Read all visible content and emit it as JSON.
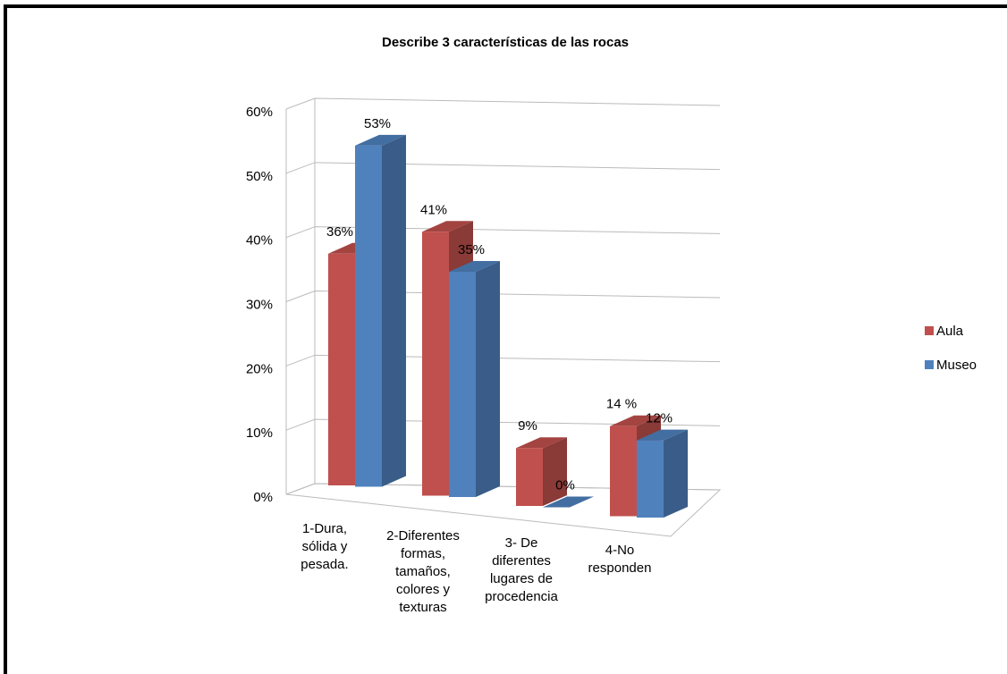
{
  "chart_data": {
    "type": "bar3d",
    "title": "Describe 3 características de las rocas",
    "categories": [
      "1-Dura, sólida y pesada.",
      "2-Diferentes formas, tamaños, colores y texturas",
      "3- De diferentes lugares de procedencia",
      "4-No responden"
    ],
    "series": [
      {
        "name": "Aula",
        "color": "#c0504d",
        "values": [
          36,
          41,
          9,
          14
        ],
        "value_labels": [
          "36%",
          "41%",
          "9%",
          "14 %"
        ]
      },
      {
        "name": "Museo",
        "color": "#4f81bd",
        "values": [
          53,
          35,
          0,
          12
        ],
        "value_labels": [
          "53%",
          "35%",
          "0%",
          "12%"
        ]
      }
    ],
    "ylim": [
      0,
      60
    ],
    "yticks": [
      {
        "value": 0,
        "label": "0%"
      },
      {
        "value": 10,
        "label": "10%"
      },
      {
        "value": 20,
        "label": "20%"
      },
      {
        "value": 30,
        "label": "30%"
      },
      {
        "value": 40,
        "label": "40%"
      },
      {
        "value": 50,
        "label": "50%"
      },
      {
        "value": 60,
        "label": "60%"
      }
    ],
    "grid": true,
    "legend": "right"
  }
}
